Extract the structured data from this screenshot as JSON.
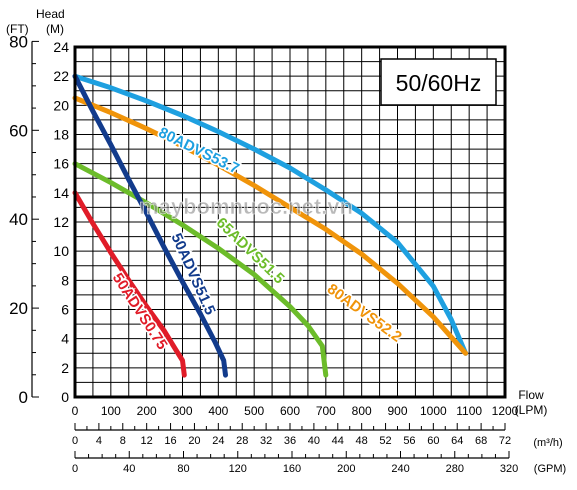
{
  "chart_data": {
    "type": "line",
    "head_label": "Head",
    "ft_unit": "(FT)",
    "m_unit": "(M)",
    "frequency_label": "50/60Hz",
    "watermark": "maybomnuoc.net.vn",
    "flow_label": "Flow",
    "lpm_unit": "(LPM)",
    "m3h_unit": "(m³/h)",
    "gpm_unit": "(GPM)",
    "y_m": {
      "ticks": [
        0,
        2,
        4,
        6,
        8,
        10,
        12,
        14,
        16,
        18,
        20,
        22,
        24
      ],
      "range": [
        0,
        24
      ]
    },
    "y_ft": {
      "ticks": [
        0,
        20,
        40,
        60,
        80
      ]
    },
    "x_lpm": {
      "ticks": [
        0,
        100,
        200,
        300,
        400,
        500,
        600,
        700,
        800,
        900,
        1000,
        1100,
        1200
      ],
      "range": [
        0,
        1200
      ]
    },
    "x_m3h": {
      "ticks": [
        0,
        4,
        8,
        12,
        16,
        20,
        24,
        28,
        32,
        36,
        40,
        44,
        48,
        52,
        56,
        60,
        64,
        68,
        72
      ]
    },
    "x_gpm": {
      "ticks": [
        0,
        40,
        80,
        120,
        160,
        200,
        240,
        280,
        320
      ]
    },
    "series": [
      {
        "name": "80ADVS53.7",
        "color": "#1ea0e0",
        "label_at": [
          340,
          16.6
        ],
        "angle": 26,
        "points": [
          [
            0,
            22
          ],
          [
            100,
            21.2
          ],
          [
            200,
            20.3
          ],
          [
            300,
            19.3
          ],
          [
            400,
            18.2
          ],
          [
            500,
            17
          ],
          [
            600,
            15.7
          ],
          [
            700,
            14.2
          ],
          [
            800,
            12.6
          ],
          [
            900,
            10.6
          ],
          [
            1000,
            7.6
          ],
          [
            1050,
            5.3
          ],
          [
            1090,
            3
          ]
        ]
      },
      {
        "name": "80ADVS52.2",
        "color": "#f0940a",
        "label_at": [
          800,
          5.5
        ],
        "angle": 36,
        "points": [
          [
            0,
            20.5
          ],
          [
            100,
            19.5
          ],
          [
            200,
            18.4
          ],
          [
            300,
            17.2
          ],
          [
            400,
            15.9
          ],
          [
            500,
            14.5
          ],
          [
            600,
            13
          ],
          [
            700,
            11.5
          ],
          [
            800,
            9.8
          ],
          [
            900,
            7.8
          ],
          [
            1000,
            5.5
          ],
          [
            1090,
            3
          ]
        ]
      },
      {
        "name": "65ADVS51.5",
        "color": "#6cbc2a",
        "label_at": [
          480,
          9.8
        ],
        "angle": 44,
        "points": [
          [
            0,
            16
          ],
          [
            100,
            14.7
          ],
          [
            200,
            13.3
          ],
          [
            300,
            11.8
          ],
          [
            400,
            10.2
          ],
          [
            500,
            8.4
          ],
          [
            600,
            6.2
          ],
          [
            650,
            4.9
          ],
          [
            690,
            3.5
          ],
          [
            700,
            1.5
          ]
        ]
      },
      {
        "name": "50ADVS51.5",
        "color": "#123b8c",
        "label_at": [
          318,
          8.3
        ],
        "angle": 66,
        "points": [
          [
            0,
            22
          ],
          [
            50,
            19.6
          ],
          [
            100,
            17.3
          ],
          [
            150,
            14.9
          ],
          [
            200,
            12.6
          ],
          [
            250,
            10.2
          ],
          [
            300,
            7.9
          ],
          [
            350,
            5.7
          ],
          [
            390,
            3.8
          ],
          [
            415,
            2.5
          ],
          [
            420,
            1.5
          ]
        ]
      },
      {
        "name": "50ADVS0.75",
        "color": "#e01c28",
        "label_at": [
          170,
          5.7
        ],
        "angle": 57,
        "points": [
          [
            0,
            14
          ],
          [
            50,
            11.9
          ],
          [
            100,
            9.9
          ],
          [
            150,
            8
          ],
          [
            200,
            6.2
          ],
          [
            250,
            4.5
          ],
          [
            280,
            3.3
          ],
          [
            300,
            2.5
          ],
          [
            305,
            1.5
          ]
        ]
      }
    ]
  }
}
